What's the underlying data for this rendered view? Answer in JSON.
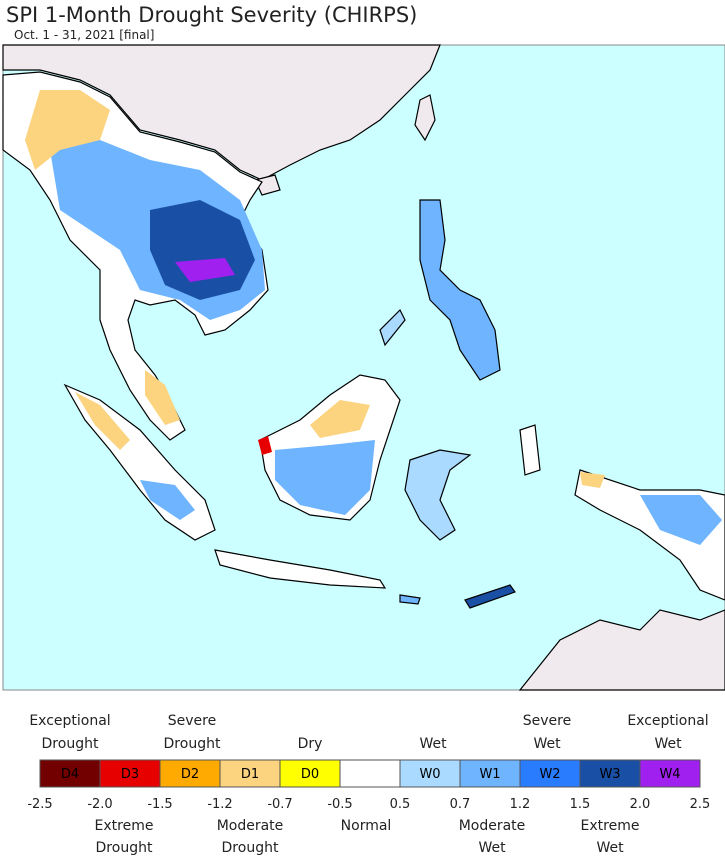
{
  "header": {
    "title": "SPI 1-Month Drought Severity (CHIRPS)",
    "subtitle": "Oct. 1 - 31, 2021 [final]"
  },
  "legend": {
    "classes": [
      {
        "code": "D4",
        "color": "#730000",
        "text_color": "#000000"
      },
      {
        "code": "D3",
        "color": "#e60000",
        "text_color": "#000000"
      },
      {
        "code": "D2",
        "color": "#ffaa00",
        "text_color": "#000000"
      },
      {
        "code": "D1",
        "color": "#fcd37f",
        "text_color": "#000000"
      },
      {
        "code": "D0",
        "color": "#ffff00",
        "text_color": "#000000"
      },
      {
        "color": "#ffffff"
      },
      {
        "code": "W0",
        "color": "#aadaff",
        "text_color": "#000000"
      },
      {
        "code": "W1",
        "color": "#6eb4ff",
        "text_color": "#000000"
      },
      {
        "code": "W2",
        "color": "#2a7cff",
        "text_color": "#000000"
      },
      {
        "code": "W3",
        "color": "#1a4fa6",
        "text_color": "#000000"
      },
      {
        "code": "W4",
        "color": "#a020f0",
        "text_color": "#000000"
      }
    ],
    "ticks": [
      "-2.5",
      "-2.0",
      "-1.5",
      "-1.2",
      "-0.7",
      "-0.5",
      "0.5",
      "0.7",
      "1.2",
      "1.5",
      "2.0",
      "2.5"
    ],
    "top_labels": [
      [
        "Exceptional",
        "Drought"
      ],
      [
        "Severe",
        "Drought"
      ],
      [
        "Dry"
      ],
      [
        "Wet"
      ],
      [
        "Severe",
        "Wet"
      ],
      [
        "Exceptional",
        "Wet"
      ]
    ],
    "bottom_labels": [
      [
        "Extreme",
        "Drought"
      ],
      [
        "Moderate",
        "Drought"
      ],
      [
        "Normal"
      ],
      [
        "Moderate",
        "Wet"
      ],
      [
        "Extreme",
        "Wet"
      ]
    ]
  }
}
